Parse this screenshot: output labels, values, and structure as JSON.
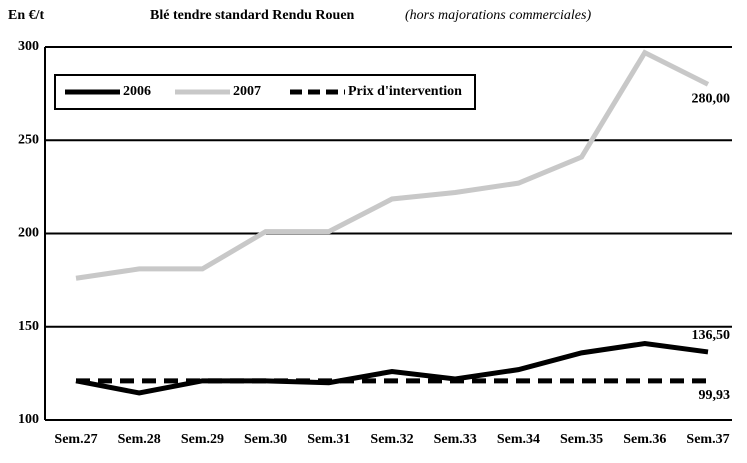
{
  "chart_data": {
    "type": "line",
    "title": "Blé tendre standard Rendu Rouen",
    "subtitle": "(hors majorations commerciales)",
    "y_label": "En €/t",
    "categories": [
      "Sem.27",
      "Sem.28",
      "Sem.29",
      "Sem.30",
      "Sem.31",
      "Sem.32",
      "Sem.33",
      "Sem.34",
      "Sem.35",
      "Sem.36",
      "Sem.37"
    ],
    "series": [
      {
        "name": "2006",
        "color": "#000000",
        "style": "solid",
        "values": [
          121,
          114.5,
          121,
          121,
          120,
          126,
          122,
          127,
          136,
          141,
          136.5
        ],
        "value_labels": [
          null,
          null,
          null,
          null,
          null,
          null,
          null,
          null,
          null,
          null,
          "136,50"
        ]
      },
      {
        "name": "2007",
        "color": "#c8c8c8",
        "style": "solid",
        "values": [
          176,
          181,
          181,
          201,
          201,
          218.5,
          222,
          227,
          241,
          297,
          280
        ],
        "value_labels": [
          null,
          null,
          null,
          null,
          null,
          null,
          null,
          null,
          null,
          null,
          "280,00"
        ]
      },
      {
        "name": "Prix d'intervention",
        "color": "#000000",
        "style": "dashed",
        "values": [
          121,
          121,
          121,
          121,
          121,
          121,
          121,
          121,
          121,
          121,
          121
        ]
      }
    ],
    "annotations": [
      "99,93"
    ],
    "ylim": [
      100,
      300
    ],
    "yticks": [
      100,
      150,
      200,
      250,
      300
    ],
    "grid": true,
    "legend": "top-left"
  }
}
